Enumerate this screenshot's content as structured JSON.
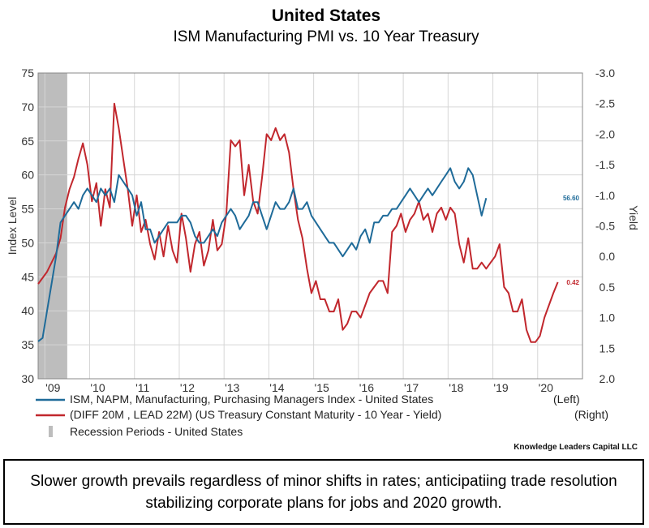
{
  "chart_data": {
    "type": "line",
    "title": "United States",
    "subtitle": "ISM Manufacturing PMI vs. 10 Year Treasury",
    "x_tick_labels": [
      "'09",
      "'10",
      "'11",
      "'12",
      "'13",
      "'14",
      "'15",
      "'16",
      "'17",
      "'18",
      "'19",
      "'20"
    ],
    "x_tick_years": [
      2009,
      2010,
      2011,
      2012,
      2013,
      2014,
      2015,
      2016,
      2017,
      2018,
      2019,
      2020
    ],
    "xlim": [
      2008.85,
      2021.0
    ],
    "ylabel_left": "Index Level",
    "ylabel_right": "Yield",
    "ylim_left": [
      30,
      75
    ],
    "yticks_left": [
      "30",
      "35",
      "40",
      "45",
      "50",
      "55",
      "60",
      "65",
      "70",
      "75"
    ],
    "ylim_right": [
      2.0,
      -3.0
    ],
    "yticks_right": [
      "-3.0",
      "-2.5",
      "-2.0",
      "-1.5",
      "-1.0",
      "-0.5",
      "0.0",
      "0.5",
      "1.0",
      "1.5",
      "2.0"
    ],
    "grid": true,
    "legend_position": "bottom",
    "recession": {
      "label": "Recession Periods - United States",
      "start": 2008.85,
      "end": 2009.5,
      "color": "#bdbdbd"
    },
    "series": [
      {
        "name": "ISM, NAPM, Manufacturing, Purchasing Managers Index - United States",
        "legend_suffix": "(Left)",
        "axis": "left",
        "color": "#1f6b99",
        "end_label": "56.60",
        "x": [
          2008.85,
          2008.95,
          2009.05,
          2009.15,
          2009.25,
          2009.35,
          2009.45,
          2009.55,
          2009.65,
          2009.75,
          2009.85,
          2009.95,
          2010.05,
          2010.15,
          2010.25,
          2010.35,
          2010.45,
          2010.55,
          2010.65,
          2010.75,
          2010.85,
          2010.95,
          2011.05,
          2011.15,
          2011.25,
          2011.35,
          2011.45,
          2011.55,
          2011.65,
          2011.75,
          2011.85,
          2011.95,
          2012.05,
          2012.15,
          2012.25,
          2012.35,
          2012.45,
          2012.55,
          2012.65,
          2012.75,
          2012.85,
          2012.95,
          2013.05,
          2013.15,
          2013.25,
          2013.35,
          2013.45,
          2013.55,
          2013.65,
          2013.75,
          2013.85,
          2013.95,
          2014.05,
          2014.15,
          2014.25,
          2014.35,
          2014.45,
          2014.55,
          2014.65,
          2014.75,
          2014.85,
          2014.95,
          2015.05,
          2015.15,
          2015.25,
          2015.35,
          2015.45,
          2015.55,
          2015.65,
          2015.75,
          2015.85,
          2015.95,
          2016.05,
          2016.15,
          2016.25,
          2016.35,
          2016.45,
          2016.55,
          2016.65,
          2016.75,
          2016.85,
          2016.95,
          2017.05,
          2017.15,
          2017.25,
          2017.35,
          2017.45,
          2017.55,
          2017.65,
          2017.75,
          2017.85,
          2017.95,
          2018.05,
          2018.15,
          2018.25,
          2018.35,
          2018.45,
          2018.55,
          2018.65,
          2018.75,
          2018.85
        ],
        "values": [
          35.5,
          36,
          40,
          44,
          48,
          53,
          54,
          55,
          56,
          55,
          57,
          58,
          57,
          56,
          58,
          57,
          58,
          56,
          60,
          59,
          58,
          57,
          54,
          56,
          52,
          52,
          50,
          51,
          52,
          53,
          53,
          53,
          54,
          54,
          53,
          51,
          50,
          50,
          51,
          52,
          51,
          53,
          54,
          55,
          54,
          52,
          53,
          54,
          56,
          56,
          54,
          52,
          54,
          56,
          55,
          55,
          56,
          58,
          55,
          55,
          56,
          54,
          53,
          52,
          51,
          50,
          50,
          49,
          48,
          49,
          50,
          49,
          51,
          52,
          50,
          53,
          53,
          54,
          54,
          55,
          55,
          56,
          57,
          58,
          57,
          56,
          57,
          58,
          57,
          58,
          59,
          60,
          61,
          59,
          58,
          59,
          61,
          60,
          57,
          54,
          56.6
        ]
      },
      {
        "name": "(DIFF 20M , LEAD 22M) (US Treasury Constant Maturity - 10 Year - Yield)",
        "legend_suffix": "(Right)",
        "axis": "right",
        "color": "#c1272d",
        "end_label": "0.42",
        "x": [
          2008.85,
          2008.95,
          2009.05,
          2009.15,
          2009.25,
          2009.35,
          2009.45,
          2009.55,
          2009.65,
          2009.75,
          2009.85,
          2009.95,
          2010.05,
          2010.15,
          2010.25,
          2010.35,
          2010.45,
          2010.55,
          2010.65,
          2010.75,
          2010.85,
          2010.95,
          2011.05,
          2011.15,
          2011.25,
          2011.35,
          2011.45,
          2011.55,
          2011.65,
          2011.75,
          2011.85,
          2011.95,
          2012.05,
          2012.15,
          2012.25,
          2012.35,
          2012.45,
          2012.55,
          2012.65,
          2012.75,
          2012.85,
          2012.95,
          2013.05,
          2013.15,
          2013.25,
          2013.35,
          2013.45,
          2013.55,
          2013.65,
          2013.75,
          2013.85,
          2013.95,
          2014.05,
          2014.15,
          2014.25,
          2014.35,
          2014.45,
          2014.55,
          2014.65,
          2014.75,
          2014.85,
          2014.95,
          2015.05,
          2015.15,
          2015.25,
          2015.35,
          2015.45,
          2015.55,
          2015.65,
          2015.75,
          2015.85,
          2015.95,
          2016.05,
          2016.15,
          2016.25,
          2016.35,
          2016.45,
          2016.55,
          2016.65,
          2016.75,
          2016.85,
          2016.95,
          2017.05,
          2017.15,
          2017.25,
          2017.35,
          2017.45,
          2017.55,
          2017.65,
          2017.75,
          2017.85,
          2017.95,
          2018.05,
          2018.15,
          2018.25,
          2018.35,
          2018.45,
          2018.55,
          2018.65,
          2018.75,
          2018.85,
          2018.95,
          2019.05,
          2019.15,
          2019.25,
          2019.35,
          2019.45,
          2019.55,
          2019.65,
          2019.75,
          2019.85,
          2019.95,
          2020.05,
          2020.15,
          2020.25,
          2020.35,
          2020.45
        ],
        "values": [
          0.45,
          0.35,
          0.25,
          0.1,
          -0.05,
          -0.3,
          -0.8,
          -1.1,
          -1.3,
          -1.6,
          -1.85,
          -1.5,
          -0.9,
          -1.2,
          -0.5,
          -1.1,
          -0.8,
          -2.5,
          -2.1,
          -1.6,
          -1.1,
          -0.5,
          -1.0,
          -0.4,
          -0.6,
          -0.2,
          0.05,
          -0.4,
          0.0,
          -0.5,
          -0.1,
          0.1,
          -0.7,
          -0.3,
          0.25,
          -0.2,
          -0.4,
          0.15,
          -0.1,
          -0.6,
          -0.1,
          -0.2,
          -0.7,
          -1.9,
          -1.8,
          -1.9,
          -1.0,
          -1.5,
          -0.9,
          -0.7,
          -1.3,
          -2.0,
          -1.9,
          -2.1,
          -1.9,
          -2.0,
          -1.7,
          -1.1,
          -0.6,
          -0.3,
          0.2,
          0.6,
          0.4,
          0.7,
          0.7,
          0.9,
          0.9,
          0.7,
          1.2,
          1.1,
          0.9,
          0.9,
          1.0,
          0.8,
          0.6,
          0.5,
          0.4,
          0.4,
          0.6,
          -0.4,
          -0.5,
          -0.7,
          -0.4,
          -0.6,
          -0.7,
          -0.9,
          -0.6,
          -0.7,
          -0.4,
          -0.7,
          -0.8,
          -0.6,
          -0.8,
          -0.7,
          -0.2,
          0.1,
          -0.3,
          0.2,
          0.2,
          0.1,
          0.2,
          0.1,
          0.0,
          -0.2,
          0.5,
          0.6,
          0.9,
          0.9,
          0.7,
          1.2,
          1.4,
          1.4,
          1.3,
          1.0,
          0.8,
          0.6,
          0.42
        ]
      }
    ],
    "credit": "Knowledge Leaders Capital LLC"
  },
  "caption": "Slower growth prevails regardless of minor shifts in rates; anticipatiing trade resolution stabilizing corporate plans for jobs and 2020 growth."
}
